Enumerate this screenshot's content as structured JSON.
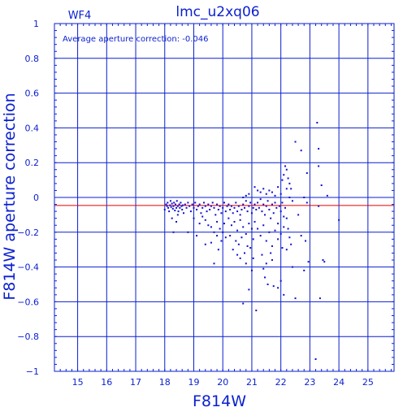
{
  "chart_data": {
    "type": "scatter",
    "title": "lmc_u2xq06",
    "subtitle": "WF4",
    "annotation": "Average aperture correction:  -0.046",
    "xlabel": "F814W",
    "ylabel": "F814W aperture correction",
    "xlim": [
      14.2,
      25.9
    ],
    "ylim": [
      -1,
      1
    ],
    "x_ticks": [
      "15",
      "16",
      "17",
      "18",
      "19",
      "20",
      "21",
      "22",
      "23",
      "24",
      "25"
    ],
    "y_ticks": [
      "1",
      "0.8",
      "0.6",
      "0.4",
      "0.2",
      "0",
      "−0.2",
      "−0.4",
      "−0.6",
      "−0.8",
      "−1"
    ],
    "grid": true,
    "reference_line": {
      "y": -0.046,
      "color": "#e00000"
    },
    "point_color": "#1010d0",
    "axis_color": "#0a1fd0",
    "points": [
      [
        18.0,
        -0.07
      ],
      [
        18.05,
        -0.04
      ],
      [
        18.08,
        -0.05
      ],
      [
        18.1,
        -0.03
      ],
      [
        18.12,
        -0.06
      ],
      [
        18.15,
        -0.08
      ],
      [
        18.18,
        -0.045
      ],
      [
        18.2,
        -0.02
      ],
      [
        18.22,
        -0.055
      ],
      [
        18.25,
        -0.035
      ],
      [
        18.28,
        -0.065
      ],
      [
        18.3,
        -0.05
      ],
      [
        18.32,
        -0.03
      ],
      [
        18.35,
        -0.075
      ],
      [
        18.37,
        -0.04
      ],
      [
        18.4,
        -0.06
      ],
      [
        18.42,
        -0.02
      ],
      [
        18.45,
        -0.05
      ],
      [
        18.47,
        -0.08
      ],
      [
        18.5,
        -0.04
      ],
      [
        18.52,
        -0.06
      ],
      [
        18.55,
        -0.03
      ],
      [
        18.58,
        -0.05
      ],
      [
        18.6,
        -0.07
      ],
      [
        18.62,
        -0.045
      ],
      [
        18.65,
        -0.09
      ],
      [
        18.3,
        -0.2
      ],
      [
        18.4,
        -0.14
      ],
      [
        18.25,
        -0.12
      ],
      [
        18.45,
        -0.1
      ],
      [
        18.7,
        -0.04
      ],
      [
        18.75,
        -0.06
      ],
      [
        18.8,
        -0.03
      ],
      [
        18.85,
        -0.05
      ],
      [
        18.9,
        -0.08
      ],
      [
        18.95,
        -0.04
      ],
      [
        19.0,
        -0.06
      ],
      [
        19.05,
        -0.03
      ],
      [
        19.1,
        -0.07
      ],
      [
        19.15,
        -0.05
      ],
      [
        19.2,
        -0.04
      ],
      [
        19.25,
        -0.09
      ],
      [
        19.3,
        -0.06
      ],
      [
        19.35,
        -0.03
      ],
      [
        19.4,
        -0.05
      ],
      [
        19.45,
        -0.08
      ],
      [
        19.5,
        -0.04
      ],
      [
        19.55,
        -0.07
      ],
      [
        19.6,
        -0.05
      ],
      [
        19.65,
        -0.03
      ],
      [
        19.7,
        -0.06
      ],
      [
        19.75,
        -0.1
      ],
      [
        19.8,
        -0.04
      ],
      [
        19.85,
        -0.07
      ],
      [
        19.9,
        -0.05
      ],
      [
        19.95,
        -0.09
      ],
      [
        20.0,
        -0.06
      ],
      [
        20.05,
        -0.03
      ],
      [
        20.1,
        -0.08
      ],
      [
        20.15,
        -0.05
      ],
      [
        19.0,
        -0.12
      ],
      [
        19.2,
        -0.15
      ],
      [
        19.4,
        -0.13
      ],
      [
        19.6,
        -0.17
      ],
      [
        19.8,
        -0.14
      ],
      [
        19.5,
        -0.16
      ],
      [
        19.7,
        -0.2
      ],
      [
        19.9,
        -0.18
      ],
      [
        20.05,
        -0.15
      ],
      [
        19.3,
        -0.11
      ],
      [
        19.8,
        -0.22
      ],
      [
        19.95,
        -0.25
      ],
      [
        20.0,
        -0.2
      ],
      [
        20.1,
        -0.23
      ],
      [
        19.6,
        -0.26
      ],
      [
        18.8,
        -0.2
      ],
      [
        19.1,
        -0.22
      ],
      [
        19.4,
        -0.27
      ],
      [
        19.85,
        -0.3
      ],
      [
        19.7,
        -0.38
      ],
      [
        20.2,
        -0.04
      ],
      [
        20.25,
        -0.07
      ],
      [
        20.3,
        -0.05
      ],
      [
        20.35,
        -0.09
      ],
      [
        20.4,
        -0.06
      ],
      [
        20.45,
        -0.03
      ],
      [
        20.5,
        -0.08
      ],
      [
        20.55,
        -0.05
      ],
      [
        20.6,
        -0.1
      ],
      [
        20.65,
        -0.07
      ],
      [
        20.7,
        -0.04
      ],
      [
        20.75,
        -0.06
      ],
      [
        20.8,
        -0.02
      ],
      [
        20.85,
        -0.08
      ],
      [
        20.9,
        -0.05
      ],
      [
        20.95,
        -0.03
      ],
      [
        21.0,
        -0.09
      ],
      [
        21.05,
        -0.06
      ],
      [
        21.1,
        -0.04
      ],
      [
        21.15,
        -0.07
      ],
      [
        20.2,
        -0.12
      ],
      [
        20.3,
        -0.16
      ],
      [
        20.4,
        -0.14
      ],
      [
        20.5,
        -0.19
      ],
      [
        20.6,
        -0.13
      ],
      [
        20.7,
        -0.17
      ],
      [
        20.8,
        -0.21
      ],
      [
        20.9,
        -0.15
      ],
      [
        21.0,
        -0.18
      ],
      [
        21.1,
        -0.14
      ],
      [
        20.25,
        -0.22
      ],
      [
        20.45,
        -0.25
      ],
      [
        20.65,
        -0.23
      ],
      [
        20.85,
        -0.28
      ],
      [
        21.05,
        -0.24
      ],
      [
        20.35,
        -0.3
      ],
      [
        20.55,
        -0.27
      ],
      [
        20.75,
        -0.32
      ],
      [
        20.95,
        -0.29
      ],
      [
        20.6,
        -0.35
      ],
      [
        20.7,
        -0.61
      ],
      [
        20.9,
        -0.53
      ],
      [
        21.15,
        -0.65
      ],
      [
        21.0,
        -0.42
      ],
      [
        20.8,
        -0.38
      ],
      [
        21.05,
        -0.35
      ],
      [
        20.5,
        -0.33
      ],
      [
        20.7,
        0.0
      ],
      [
        20.8,
        0.01
      ],
      [
        20.9,
        0.02
      ],
      [
        21.2,
        -0.03
      ],
      [
        21.25,
        -0.06
      ],
      [
        21.3,
        -0.01
      ],
      [
        21.35,
        -0.08
      ],
      [
        21.4,
        -0.04
      ],
      [
        21.45,
        -0.1
      ],
      [
        21.5,
        -0.05
      ],
      [
        21.55,
        -0.02
      ],
      [
        21.6,
        -0.07
      ],
      [
        21.65,
        -0.12
      ],
      [
        21.7,
        -0.04
      ],
      [
        21.75,
        -0.09
      ],
      [
        21.8,
        -0.03
      ],
      [
        21.85,
        -0.06
      ],
      [
        21.9,
        -0.15
      ],
      [
        21.95,
        -0.05
      ],
      [
        22.0,
        -0.08
      ],
      [
        22.05,
        -0.03
      ],
      [
        22.1,
        -0.11
      ],
      [
        22.15,
        -0.06
      ],
      [
        21.1,
        0.06
      ],
      [
        21.2,
        0.04
      ],
      [
        21.3,
        0.03
      ],
      [
        21.4,
        0.05
      ],
      [
        21.5,
        0.02
      ],
      [
        21.6,
        0.04
      ],
      [
        21.7,
        0.03
      ],
      [
        21.8,
        0.01
      ],
      [
        21.9,
        0.06
      ],
      [
        22.0,
        0.02
      ],
      [
        21.2,
        -0.18
      ],
      [
        21.3,
        -0.22
      ],
      [
        21.4,
        -0.16
      ],
      [
        21.5,
        -0.25
      ],
      [
        21.6,
        -0.2
      ],
      [
        21.7,
        -0.28
      ],
      [
        21.8,
        -0.19
      ],
      [
        21.9,
        -0.24
      ],
      [
        22.0,
        -0.21
      ],
      [
        22.1,
        -0.17
      ],
      [
        21.35,
        -0.33
      ],
      [
        21.5,
        -0.38
      ],
      [
        21.65,
        -0.32
      ],
      [
        21.45,
        -0.46
      ],
      [
        21.55,
        -0.5
      ],
      [
        21.75,
        -0.51
      ],
      [
        21.9,
        -0.52
      ],
      [
        21.4,
        -0.41
      ],
      [
        21.7,
        -0.36
      ],
      [
        22.05,
        -0.29
      ],
      [
        22.1,
        0.13
      ],
      [
        22.15,
        0.18
      ],
      [
        22.2,
        0.16
      ],
      [
        22.25,
        0.11
      ],
      [
        22.3,
        0.08
      ],
      [
        22.35,
        0.05
      ],
      [
        22.05,
        0.1
      ],
      [
        22.2,
        0.05
      ],
      [
        22.3,
        0.0
      ],
      [
        22.4,
        -0.02
      ],
      [
        22.2,
        -0.12
      ],
      [
        22.25,
        -0.18
      ],
      [
        22.3,
        -0.23
      ],
      [
        22.35,
        -0.27
      ],
      [
        22.2,
        -0.3
      ],
      [
        22.0,
        -0.48
      ],
      [
        22.1,
        -0.56
      ],
      [
        22.4,
        -0.4
      ],
      [
        22.5,
        -0.58
      ],
      [
        22.6,
        -0.1
      ],
      [
        22.5,
        0.32
      ],
      [
        22.7,
        0.27
      ],
      [
        22.8,
        0.0
      ],
      [
        22.9,
        -0.03
      ],
      [
        22.7,
        -0.22
      ],
      [
        22.85,
        -0.25
      ],
      [
        22.8,
        -0.42
      ],
      [
        22.95,
        -0.37
      ],
      [
        23.25,
        0.43
      ],
      [
        23.3,
        0.28
      ],
      [
        23.3,
        0.18
      ],
      [
        23.4,
        0.07
      ],
      [
        23.3,
        -0.05
      ],
      [
        23.45,
        -0.36
      ],
      [
        23.5,
        -0.37
      ],
      [
        23.35,
        -0.58
      ],
      [
        23.6,
        0.01
      ],
      [
        24.0,
        -0.13
      ],
      [
        23.2,
        -0.93
      ],
      [
        22.9,
        0.14
      ]
    ]
  }
}
